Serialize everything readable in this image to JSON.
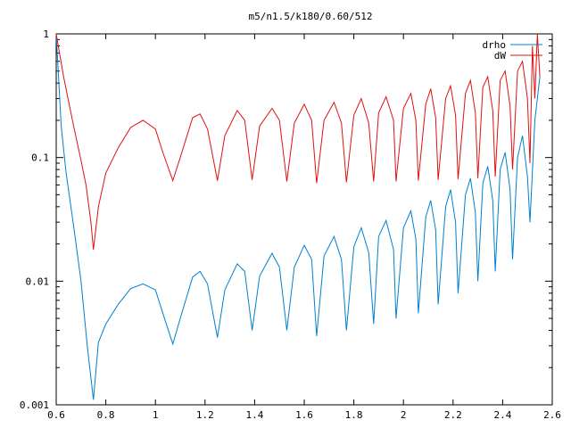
{
  "chart_data": {
    "type": "line",
    "title": "m5/n1.5/k180/0.60/512",
    "xlabel": "",
    "ylabel": "",
    "xlim": [
      0.6,
      2.6
    ],
    "ylim": [
      0.001,
      1
    ],
    "yscale": "log",
    "x_ticks": [
      0.6,
      0.8,
      1,
      1.2,
      1.4,
      1.6,
      1.8,
      2,
      2.2,
      2.4,
      2.6
    ],
    "x_tick_labels": [
      "0.6",
      "0.8",
      "1",
      "1.2",
      "1.4",
      "1.6",
      "1.8",
      "2",
      "2.2",
      "2.4",
      "2.6"
    ],
    "y_ticks": [
      0.001,
      0.01,
      0.1,
      1
    ],
    "y_tick_labels": [
      "0.001",
      "0.01",
      "0.1",
      "1"
    ],
    "legend_position": "top-right",
    "series": [
      {
        "name": "drho",
        "color": "#0080d0",
        "points": [
          [
            0.6,
            1.0
          ],
          [
            0.62,
            0.18
          ],
          [
            0.64,
            0.075
          ],
          [
            0.67,
            0.028
          ],
          [
            0.7,
            0.01
          ],
          [
            0.725,
            0.003
          ],
          [
            0.75,
            0.0011
          ],
          [
            0.77,
            0.0032
          ],
          [
            0.8,
            0.0045
          ],
          [
            0.85,
            0.0065
          ],
          [
            0.9,
            0.0087
          ],
          [
            0.95,
            0.0095
          ],
          [
            1.0,
            0.0085
          ],
          [
            1.03,
            0.0055
          ],
          [
            1.07,
            0.0031
          ],
          [
            1.1,
            0.005
          ],
          [
            1.15,
            0.0108
          ],
          [
            1.18,
            0.012
          ],
          [
            1.21,
            0.0095
          ],
          [
            1.25,
            0.0035
          ],
          [
            1.28,
            0.0085
          ],
          [
            1.33,
            0.0138
          ],
          [
            1.36,
            0.012
          ],
          [
            1.39,
            0.004
          ],
          [
            1.42,
            0.011
          ],
          [
            1.47,
            0.0168
          ],
          [
            1.5,
            0.013
          ],
          [
            1.53,
            0.004
          ],
          [
            1.56,
            0.013
          ],
          [
            1.6,
            0.0195
          ],
          [
            1.63,
            0.015
          ],
          [
            1.65,
            0.0036
          ],
          [
            1.68,
            0.016
          ],
          [
            1.72,
            0.023
          ],
          [
            1.75,
            0.015
          ],
          [
            1.77,
            0.004
          ],
          [
            1.8,
            0.019
          ],
          [
            1.83,
            0.027
          ],
          [
            1.86,
            0.017
          ],
          [
            1.88,
            0.0045
          ],
          [
            1.9,
            0.023
          ],
          [
            1.93,
            0.031
          ],
          [
            1.96,
            0.018
          ],
          [
            1.97,
            0.005
          ],
          [
            2.0,
            0.027
          ],
          [
            2.03,
            0.037
          ],
          [
            2.05,
            0.022
          ],
          [
            2.06,
            0.0055
          ],
          [
            2.09,
            0.033
          ],
          [
            2.11,
            0.045
          ],
          [
            2.13,
            0.026
          ],
          [
            2.14,
            0.0065
          ],
          [
            2.17,
            0.04
          ],
          [
            2.19,
            0.055
          ],
          [
            2.21,
            0.03
          ],
          [
            2.22,
            0.008
          ],
          [
            2.25,
            0.05
          ],
          [
            2.27,
            0.068
          ],
          [
            2.29,
            0.036
          ],
          [
            2.3,
            0.01
          ],
          [
            2.32,
            0.062
          ],
          [
            2.34,
            0.085
          ],
          [
            2.36,
            0.045
          ],
          [
            2.37,
            0.012
          ],
          [
            2.39,
            0.08
          ],
          [
            2.41,
            0.11
          ],
          [
            2.43,
            0.055
          ],
          [
            2.44,
            0.015
          ],
          [
            2.46,
            0.1
          ],
          [
            2.48,
            0.15
          ],
          [
            2.5,
            0.07
          ],
          [
            2.51,
            0.03
          ],
          [
            2.53,
            0.2
          ],
          [
            2.55,
            0.45
          ]
        ]
      },
      {
        "name": "dW",
        "color": "#e01010",
        "points": [
          [
            0.6,
            1.0
          ],
          [
            0.63,
            0.45
          ],
          [
            0.67,
            0.18
          ],
          [
            0.7,
            0.095
          ],
          [
            0.72,
            0.06
          ],
          [
            0.74,
            0.03
          ],
          [
            0.75,
            0.018
          ],
          [
            0.77,
            0.04
          ],
          [
            0.8,
            0.075
          ],
          [
            0.85,
            0.12
          ],
          [
            0.9,
            0.175
          ],
          [
            0.95,
            0.2
          ],
          [
            1.0,
            0.17
          ],
          [
            1.03,
            0.11
          ],
          [
            1.07,
            0.065
          ],
          [
            1.1,
            0.1
          ],
          [
            1.15,
            0.21
          ],
          [
            1.18,
            0.225
          ],
          [
            1.21,
            0.17
          ],
          [
            1.25,
            0.065
          ],
          [
            1.28,
            0.15
          ],
          [
            1.33,
            0.24
          ],
          [
            1.36,
            0.2
          ],
          [
            1.39,
            0.066
          ],
          [
            1.42,
            0.18
          ],
          [
            1.47,
            0.25
          ],
          [
            1.5,
            0.2
          ],
          [
            1.53,
            0.064
          ],
          [
            1.56,
            0.19
          ],
          [
            1.6,
            0.27
          ],
          [
            1.63,
            0.2
          ],
          [
            1.65,
            0.062
          ],
          [
            1.68,
            0.2
          ],
          [
            1.72,
            0.28
          ],
          [
            1.75,
            0.19
          ],
          [
            1.77,
            0.063
          ],
          [
            1.8,
            0.22
          ],
          [
            1.83,
            0.3
          ],
          [
            1.86,
            0.19
          ],
          [
            1.88,
            0.064
          ],
          [
            1.9,
            0.23
          ],
          [
            1.93,
            0.31
          ],
          [
            1.96,
            0.2
          ],
          [
            1.97,
            0.064
          ],
          [
            2.0,
            0.25
          ],
          [
            2.03,
            0.33
          ],
          [
            2.05,
            0.2
          ],
          [
            2.06,
            0.065
          ],
          [
            2.09,
            0.27
          ],
          [
            2.11,
            0.36
          ],
          [
            2.13,
            0.21
          ],
          [
            2.14,
            0.066
          ],
          [
            2.17,
            0.3
          ],
          [
            2.19,
            0.38
          ],
          [
            2.21,
            0.22
          ],
          [
            2.22,
            0.067
          ],
          [
            2.25,
            0.33
          ],
          [
            2.27,
            0.42
          ],
          [
            2.29,
            0.23
          ],
          [
            2.3,
            0.068
          ],
          [
            2.32,
            0.37
          ],
          [
            2.34,
            0.45
          ],
          [
            2.36,
            0.24
          ],
          [
            2.37,
            0.07
          ],
          [
            2.39,
            0.42
          ],
          [
            2.41,
            0.5
          ],
          [
            2.43,
            0.26
          ],
          [
            2.44,
            0.08
          ],
          [
            2.46,
            0.5
          ],
          [
            2.48,
            0.6
          ],
          [
            2.5,
            0.3
          ],
          [
            2.51,
            0.09
          ],
          [
            2.52,
            0.8
          ],
          [
            2.53,
            0.3
          ],
          [
            2.54,
            1.0
          ],
          [
            2.55,
            0.45
          ]
        ]
      }
    ]
  }
}
